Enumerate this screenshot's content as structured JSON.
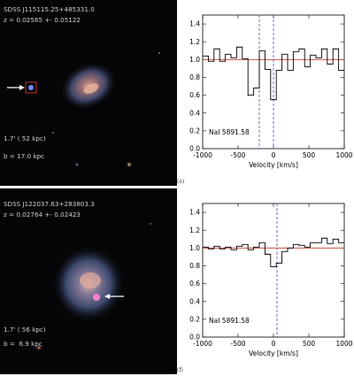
{
  "panels": [
    {
      "id": "e",
      "caption": "(e)",
      "image": {
        "name": "SDSS J115115.25+485331.0",
        "redshift": "z = 0.02565 +- 0.05122",
        "scale": "1.7' ( 52 kpc)",
        "impact": "b = 17.0 kpc"
      }
    },
    {
      "id": "f",
      "caption": "(f)",
      "image": {
        "name": "SDSS J122037.63+283803.3",
        "redshift": "z = 0.02764 +- 0.02423",
        "scale": "1.7' ( 56 kpc)",
        "impact": "b =  6.9 kpc"
      }
    }
  ],
  "chart_data": [
    {
      "type": "line",
      "line_label": "NaI 5891.58",
      "xlabel": "Velocity [km/s]",
      "ylabel": "",
      "xlim": [
        -1000,
        1000
      ],
      "ylim": [
        0.0,
        1.5
      ],
      "xticks": [
        -1000,
        -500,
        0,
        500,
        1000
      ],
      "yticks": [
        0.0,
        0.2,
        0.4,
        0.6,
        0.8,
        1.0,
        1.2,
        1.4
      ],
      "reference_line": 1.0,
      "velocity_markers": [
        -200,
        0
      ],
      "marker_style": "dashed",
      "series": [
        {
          "style": "steps",
          "x": [
            -1000,
            -920,
            -840,
            -760,
            -680,
            -600,
            -520,
            -440,
            -360,
            -280,
            -200,
            -120,
            -40,
            40,
            120,
            200,
            280,
            360,
            440,
            520,
            600,
            680,
            760,
            840,
            920
          ],
          "y": [
            1.04,
            0.98,
            1.12,
            0.98,
            1.06,
            1.02,
            1.14,
            1.01,
            0.6,
            0.68,
            1.1,
            0.89,
            0.55,
            0.88,
            1.06,
            0.88,
            1.09,
            1.12,
            0.92,
            1.05,
            1.02,
            1.12,
            0.95,
            1.12,
            0.88
          ]
        }
      ]
    },
    {
      "type": "line",
      "line_label": "NaI 5891.58",
      "xlabel": "Velocity [km/s]",
      "ylabel": "",
      "xlim": [
        -1000,
        1000
      ],
      "ylim": [
        0.0,
        1.5
      ],
      "xticks": [
        -1000,
        -500,
        0,
        500,
        1000
      ],
      "yticks": [
        0.0,
        0.2,
        0.4,
        0.6,
        0.8,
        1.0,
        1.2,
        1.4
      ],
      "reference_line": 1.0,
      "velocity_markers": [
        50
      ],
      "marker_style": "dashed",
      "series": [
        {
          "style": "steps",
          "x": [
            -1000,
            -920,
            -840,
            -760,
            -680,
            -600,
            -520,
            -440,
            -360,
            -280,
            -200,
            -120,
            -40,
            40,
            120,
            200,
            280,
            360,
            440,
            520,
            600,
            680,
            760,
            840,
            920
          ],
          "y": [
            1.01,
            0.99,
            1.02,
            0.99,
            1.01,
            0.98,
            1.02,
            1.04,
            0.98,
            1.01,
            1.06,
            0.93,
            0.79,
            0.83,
            0.96,
            1.0,
            1.04,
            1.03,
            1.01,
            1.06,
            1.06,
            1.11,
            1.05,
            1.1,
            1.06
          ]
        }
      ]
    }
  ],
  "colors": {
    "spectrum": "#000000",
    "continuum": "#c0392b",
    "markers": "#4b4bb4",
    "image_text": "#cfcfcf"
  }
}
